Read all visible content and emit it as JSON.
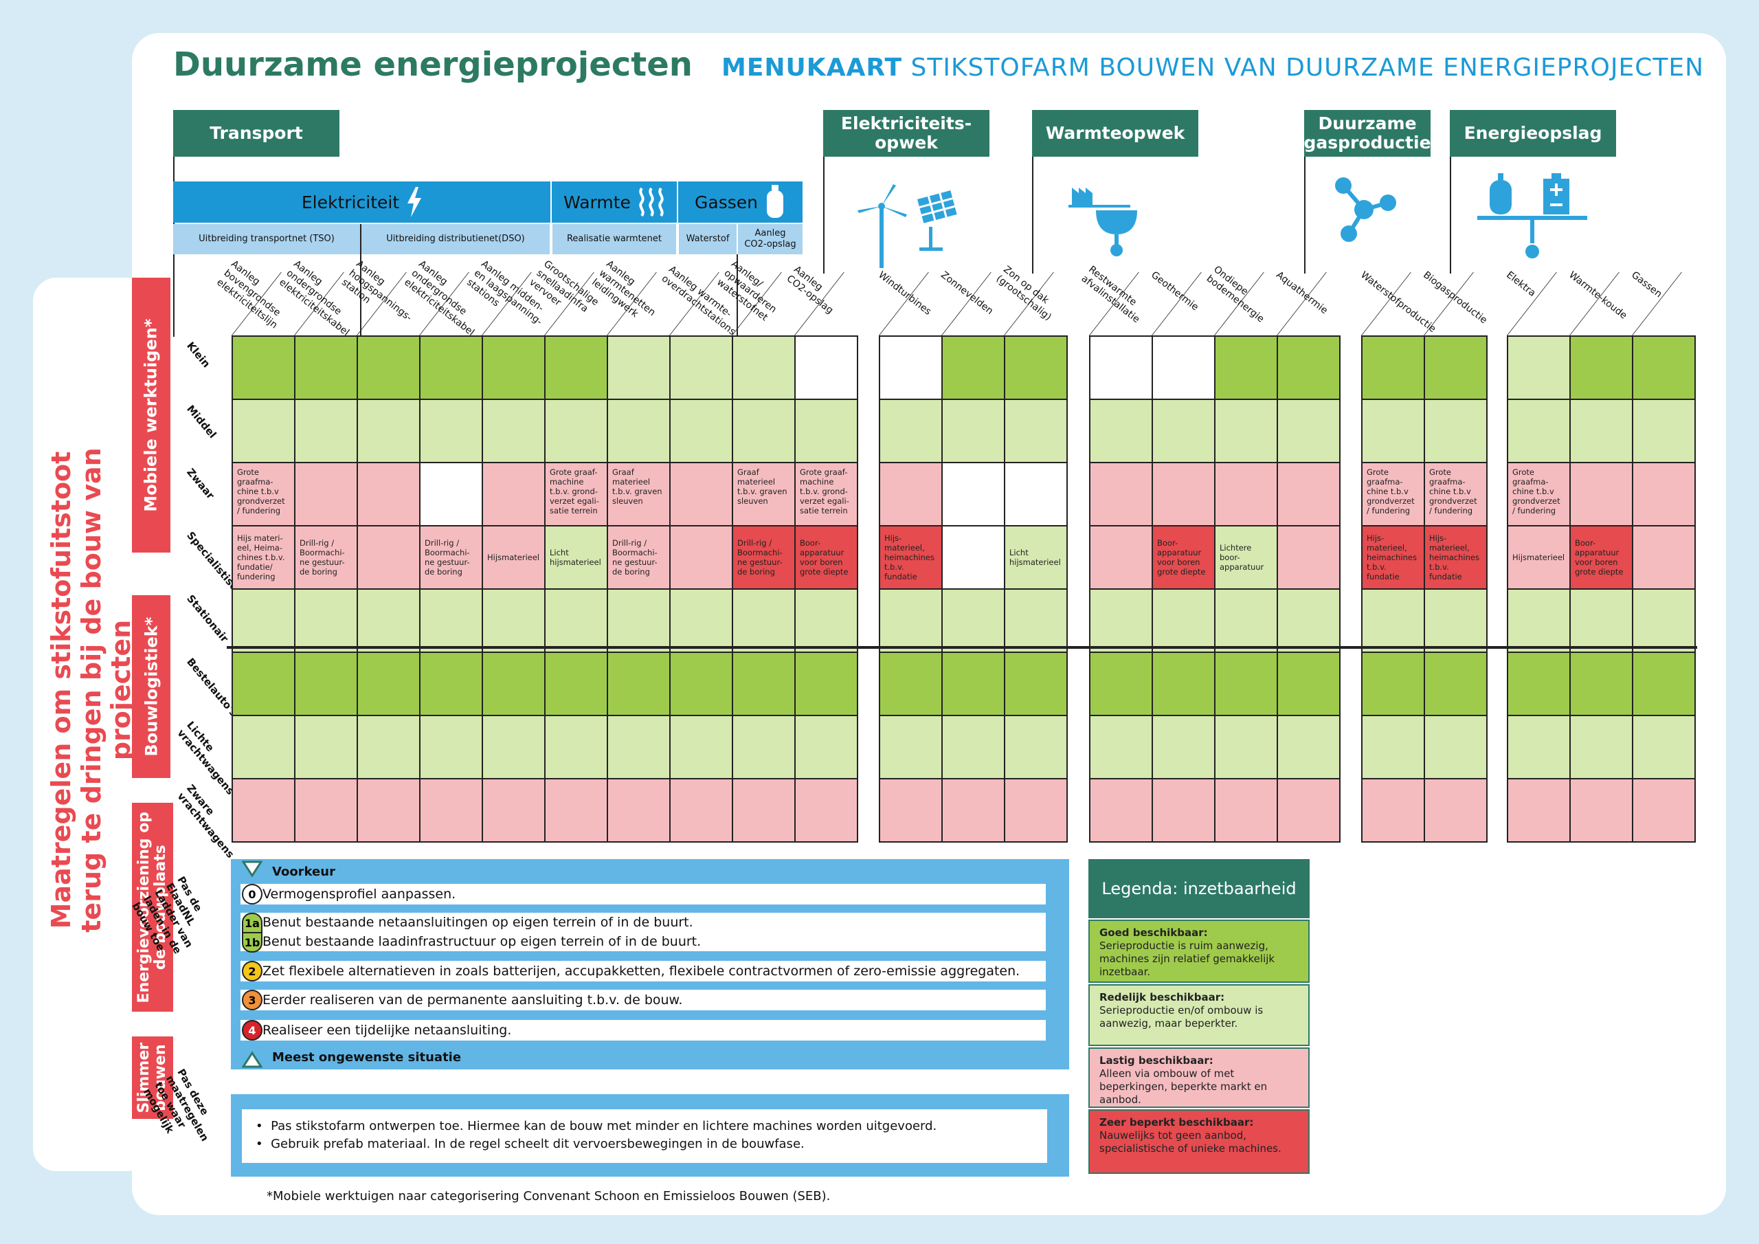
{
  "page_title": "Duurzame energieprojecten",
  "menukaart": {
    "bold": "MENUKAART",
    "rest": " STIKSTOFARM BOUWEN VAN DUURZAME ENERGIEPROJECTEN"
  },
  "main_vertical_title": "Maatregelen om stikstofuitstoot terug te dringen bij de bouw van projecten",
  "categories": {
    "transport": "Transport",
    "elektriciteitsopwek": "Elektriciteits-\nopwek",
    "warmteopwek": "Warmteopwek",
    "gasproductie": "Duurzame\ngasproductie",
    "energieopslag": "Energieopslag"
  },
  "subcategories": {
    "elektriciteit": "Elektriciteit",
    "warmte": "Warmte",
    "gassen": "Gassen"
  },
  "subsub": {
    "tso": "Uitbreiding transportnet (TSO)",
    "dso": "Uitbreiding distributienet(DSO)",
    "warmtenet": "Realisatie warmtenet",
    "waterstof": "Waterstof",
    "co2": "Aanleg\nCO2-opslag"
  },
  "columns": [
    "Aanleg\nbovengrondse\nelektriciteitslijn",
    "Aanleg\nondergrondse\nelektriciteitskabel",
    "Aanleg\nhoogspannings-\nstation",
    "Aanleg\nondergrondse\nelektriciteitskabel",
    "Aanleg midden-\nen laagspanning-\nstations",
    "Grootschalige\nsnellaadinfra\nvervoer",
    "Aanleg\nwarmtenetten\nleidingwerk",
    "Aanleg warmte-\noverdrachtstations",
    "Aanleg/\nopwaarderen\nwaterstofnet",
    "Aanleg\nCO2-opslag",
    "Windturbines",
    "Zonnevelden",
    "Zon op dak\n(grootschalig)",
    "Restwarmte\nafvalinstallatie",
    "Geothermie",
    "Ondiepe\nbodemenergie",
    "Aquathermie",
    "Waterstofproductie",
    "Biogasproductie",
    "Elektra",
    "Warmte-koude",
    "Gassen"
  ],
  "row_groups": {
    "mobiele": "Mobiele werktuigen*",
    "bouwlogistiek": "Bouwlogistiek*",
    "energie": "Energievoorziening op\nde bouwplaats",
    "slimmer": "Slimmer\nbouwen"
  },
  "rows": [
    "Klein",
    "Middel",
    "Zwaar",
    "Specialistisch",
    "Stationair",
    "Bestelauto's",
    "Lichte\nvrachtwagens",
    "Zware\nvrachtwagens"
  ],
  "status_colors": {
    "G": "#9fcb4c",
    "L": "#d6e9b0",
    "P": "#f5bcc0",
    "R": "#e54b4f",
    "W": "#ffffff"
  },
  "cells": [
    [
      [
        "G",
        ""
      ],
      [
        "G",
        ""
      ],
      [
        "G",
        ""
      ],
      [
        "G",
        ""
      ],
      [
        "G",
        ""
      ],
      [
        "G",
        ""
      ],
      [
        "L",
        ""
      ],
      [
        "L",
        ""
      ],
      [
        "L",
        ""
      ],
      [
        "W",
        ""
      ],
      [
        "W",
        ""
      ],
      [
        "G",
        ""
      ],
      [
        "G",
        ""
      ],
      [
        "W",
        ""
      ],
      [
        "W",
        ""
      ],
      [
        "G",
        ""
      ],
      [
        "G",
        ""
      ],
      [
        "G",
        ""
      ],
      [
        "G",
        ""
      ],
      [
        "L",
        ""
      ],
      [
        "G",
        ""
      ],
      [
        "G",
        ""
      ]
    ],
    [
      [
        "L",
        ""
      ],
      [
        "L",
        ""
      ],
      [
        "L",
        ""
      ],
      [
        "L",
        ""
      ],
      [
        "L",
        ""
      ],
      [
        "L",
        ""
      ],
      [
        "L",
        ""
      ],
      [
        "L",
        ""
      ],
      [
        "L",
        ""
      ],
      [
        "L",
        ""
      ],
      [
        "L",
        ""
      ],
      [
        "L",
        ""
      ],
      [
        "L",
        ""
      ],
      [
        "L",
        ""
      ],
      [
        "L",
        ""
      ],
      [
        "L",
        ""
      ],
      [
        "L",
        ""
      ],
      [
        "L",
        ""
      ],
      [
        "L",
        ""
      ],
      [
        "L",
        ""
      ],
      [
        "L",
        ""
      ],
      [
        "L",
        ""
      ]
    ],
    [
      [
        "P",
        "Grote\ngraafma-\nchine t.b.v\ngrondverzet\n/ fundering"
      ],
      [
        "P",
        ""
      ],
      [
        "P",
        ""
      ],
      [
        "W",
        ""
      ],
      [
        "P",
        ""
      ],
      [
        "P",
        "Grote graaf-\nmachine\nt.b.v. grond-\nverzet egali-\nsatie terrein"
      ],
      [
        "P",
        "Graaf\nmaterieel\nt.b.v. graven\nsleuven"
      ],
      [
        "P",
        ""
      ],
      [
        "P",
        "Graaf\nmaterieel\nt.b.v. graven\nsleuven"
      ],
      [
        "P",
        "Grote graaf-\nmachine\nt.b.v. grond-\nverzet egali-\nsatie terrein"
      ],
      [
        "P",
        ""
      ],
      [
        "W",
        ""
      ],
      [
        "W",
        ""
      ],
      [
        "P",
        ""
      ],
      [
        "P",
        ""
      ],
      [
        "P",
        ""
      ],
      [
        "P",
        ""
      ],
      [
        "P",
        "Grote\ngraafma-\nchine t.b.v\ngrondverzet\n/ fundering"
      ],
      [
        "P",
        "Grote\ngraafma-\nchine t.b.v\ngrondverzet\n/ fundering"
      ],
      [
        "P",
        "Grote\ngraafma-\nchine t.b.v\ngrondverzet\n/ fundering"
      ],
      [
        "P",
        ""
      ],
      [
        "P",
        ""
      ]
    ],
    [
      [
        "P",
        "Hijs materi-\neel, Heima-\nchines t.b.v.\nfundatie/\nfundering"
      ],
      [
        "P",
        "Drill-rig /\nBoormachi-\nne gestuur-\nde boring"
      ],
      [
        "P",
        ""
      ],
      [
        "P",
        "Drill-rig /\nBoormachi-\nne gestuur-\nde boring"
      ],
      [
        "P",
        "Hijsmaterieel"
      ],
      [
        "L",
        "Licht\nhijsmaterieel"
      ],
      [
        "P",
        "Drill-rig /\nBoormachi-\nne gestuur-\nde boring"
      ],
      [
        "P",
        ""
      ],
      [
        "R",
        "Drill-rig /\nBoormachi-\nne gestuur-\nde boring"
      ],
      [
        "R",
        "Boor-\napparatuur\nvoor boren\ngrote diepte"
      ],
      [
        "R",
        "Hijs-\nmaterieel,\nheimachines\nt.b.v.\nfundatie"
      ],
      [
        "W",
        ""
      ],
      [
        "L",
        "Licht\nhijsmaterieel"
      ],
      [
        "P",
        ""
      ],
      [
        "R",
        "Boor-\napparatuur\nvoor boren\ngrote diepte"
      ],
      [
        "L",
        "Lichtere\nboor-\napparatuur"
      ],
      [
        "P",
        ""
      ],
      [
        "R",
        "Hijs-\nmaterieel,\nheimachines\nt.b.v.\nfundatie"
      ],
      [
        "R",
        "Hijs-\nmaterieel,\nheimachines\nt.b.v.\nfundatie"
      ],
      [
        "P",
        "Hijsmaterieel"
      ],
      [
        "R",
        "Boor-\napparatuur\nvoor boren\ngrote diepte"
      ],
      [
        "P",
        ""
      ]
    ],
    [
      [
        "L",
        ""
      ],
      [
        "L",
        ""
      ],
      [
        "L",
        ""
      ],
      [
        "L",
        ""
      ],
      [
        "L",
        ""
      ],
      [
        "L",
        ""
      ],
      [
        "L",
        ""
      ],
      [
        "L",
        ""
      ],
      [
        "L",
        ""
      ],
      [
        "L",
        ""
      ],
      [
        "L",
        ""
      ],
      [
        "L",
        ""
      ],
      [
        "L",
        ""
      ],
      [
        "L",
        ""
      ],
      [
        "L",
        ""
      ],
      [
        "L",
        ""
      ],
      [
        "L",
        ""
      ],
      [
        "L",
        ""
      ],
      [
        "L",
        ""
      ],
      [
        "L",
        ""
      ],
      [
        "L",
        ""
      ],
      [
        "L",
        ""
      ]
    ],
    [
      [
        "G",
        ""
      ],
      [
        "G",
        ""
      ],
      [
        "G",
        ""
      ],
      [
        "G",
        ""
      ],
      [
        "G",
        ""
      ],
      [
        "G",
        ""
      ],
      [
        "G",
        ""
      ],
      [
        "G",
        ""
      ],
      [
        "G",
        ""
      ],
      [
        "G",
        ""
      ],
      [
        "G",
        ""
      ],
      [
        "G",
        ""
      ],
      [
        "G",
        ""
      ],
      [
        "G",
        ""
      ],
      [
        "G",
        ""
      ],
      [
        "G",
        ""
      ],
      [
        "G",
        ""
      ],
      [
        "G",
        ""
      ],
      [
        "G",
        ""
      ],
      [
        "G",
        ""
      ],
      [
        "G",
        ""
      ],
      [
        "G",
        ""
      ]
    ],
    [
      [
        "L",
        ""
      ],
      [
        "L",
        ""
      ],
      [
        "L",
        ""
      ],
      [
        "L",
        ""
      ],
      [
        "L",
        ""
      ],
      [
        "L",
        ""
      ],
      [
        "L",
        ""
      ],
      [
        "L",
        ""
      ],
      [
        "L",
        ""
      ],
      [
        "L",
        ""
      ],
      [
        "L",
        ""
      ],
      [
        "L",
        ""
      ],
      [
        "L",
        ""
      ],
      [
        "L",
        ""
      ],
      [
        "L",
        ""
      ],
      [
        "L",
        ""
      ],
      [
        "L",
        ""
      ],
      [
        "L",
        ""
      ],
      [
        "L",
        ""
      ],
      [
        "L",
        ""
      ],
      [
        "L",
        ""
      ],
      [
        "L",
        ""
      ]
    ],
    [
      [
        "P",
        ""
      ],
      [
        "P",
        ""
      ],
      [
        "P",
        ""
      ],
      [
        "P",
        ""
      ],
      [
        "P",
        ""
      ],
      [
        "P",
        ""
      ],
      [
        "P",
        ""
      ],
      [
        "P",
        ""
      ],
      [
        "P",
        ""
      ],
      [
        "P",
        ""
      ],
      [
        "P",
        ""
      ],
      [
        "P",
        ""
      ],
      [
        "P",
        ""
      ],
      [
        "P",
        ""
      ],
      [
        "P",
        ""
      ],
      [
        "P",
        ""
      ],
      [
        "P",
        ""
      ],
      [
        "P",
        ""
      ],
      [
        "P",
        ""
      ],
      [
        "P",
        ""
      ],
      [
        "P",
        ""
      ],
      [
        "P",
        ""
      ]
    ]
  ],
  "ladder": {
    "side_label": "Pas de\nElaadNL\nLadder van\nladen in de\nbouw toe",
    "top": "Voorkeur",
    "bottom": "Meest ongewenste situatie",
    "items": [
      {
        "badge": "0",
        "text": "Vermogensprofiel aanpassen.",
        "color": "#ffffff"
      },
      {
        "badge": "1a",
        "text": "Benut bestaande netaansluitingen op eigen terrein of in de buurt.",
        "color": "#9fcb4c"
      },
      {
        "badge": "1b",
        "text": "Benut bestaande laadinfrastructuur op eigen terrein of in de buurt.",
        "color": "#9fcb4c"
      },
      {
        "badge": "2",
        "text": "Zet flexibele alternatieven in zoals batterijen, accupakketten, flexibele contractvormen of zero-emissie aggregaten.",
        "color": "#f5c518"
      },
      {
        "badge": "3",
        "text": "Eerder realiseren van de permanente aansluiting t.b.v. de bouw.",
        "color": "#f0913a"
      },
      {
        "badge": "4",
        "text": "Realiseer een tijdelijke netaansluiting.",
        "color": "#d8232a"
      }
    ]
  },
  "slimmer": {
    "side_label": "Pas deze\nmaatregelen\ntoe waar\nmogelijk",
    "bullets": [
      "Pas stikstofarm ontwerpen toe. Hiermee kan de bouw met minder en lichtere machines worden uitgevoerd.",
      "Gebruik prefab materiaal. In de regel scheelt dit vervoersbewegingen in de bouwfase."
    ]
  },
  "footnote": "*Mobiele werktuigen naar categorisering Convenant Schoon en Emissieloos Bouwen (SEB).",
  "legend": {
    "title": "Legenda: inzetbaarheid",
    "items": [
      {
        "title": "Goed beschikbaar:",
        "text": "Serieproductie is ruim aanwezig, machines zijn relatief gemakkelijk inzetbaar.",
        "color": "#9fcb4c"
      },
      {
        "title": "Redelijk beschikbaar:",
        "text": "Serieproductie en/of ombouw is aanwezig, maar beperkter.",
        "color": "#d6e9b0"
      },
      {
        "title": "Lastig beschikbaar:",
        "text": "Alleen via ombouw of met beperkingen, beperkte markt en aanbod.",
        "color": "#f5bcc0"
      },
      {
        "title": "Zeer beperkt beschikbaar:",
        "text": "Nauwelijks tot geen aanbod, specialistische of unieke machines.",
        "color": "#e54b4f"
      }
    ]
  }
}
